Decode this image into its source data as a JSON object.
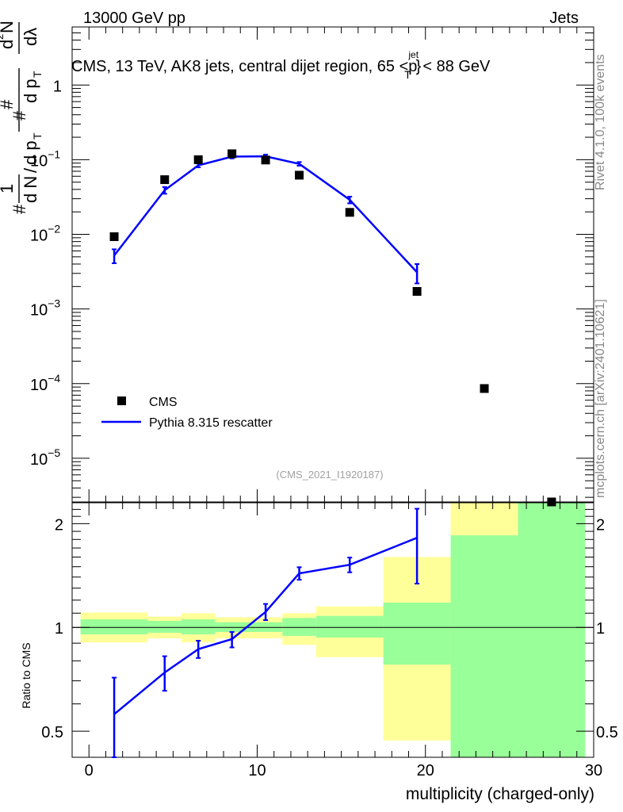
{
  "header": {
    "left": "13000 GeV pp",
    "right": "Jets",
    "title_prefix": "CMS, 13 TeV, AK8 jets, central dijet region, 65 <p",
    "title_sub": "T",
    "title_sup": "jet",
    "title_suffix": "< 88 GeV"
  },
  "side_labels": {
    "rivet": "Rivet 4.1.0,  100k events",
    "mcplots": "mcplots.cern.ch [arXiv:2401.10621]"
  },
  "watermark": "(CMS_2021_I1920187)",
  "legend": {
    "data_label": "CMS",
    "mc_label": "Pythia 8.315 rescatter"
  },
  "y_axis_label": {
    "hash": "#",
    "one": "1",
    "dn": "d N",
    "slash": "/",
    "dpt": "d p",
    "t": "T",
    "d2n": "d",
    "two": "2",
    "n": "N",
    "dpt2": "d p",
    "dlambda": "dλ"
  },
  "ratio_ylabel": "Ratio to CMS",
  "colors": {
    "mc": "#0000ff",
    "band_inner": "#99ff99",
    "band_outer": "#ffff99",
    "data": "#000000"
  },
  "chart_data": {
    "type": "scatter",
    "xlabel": "multiplicity (charged-only)",
    "xlim": [
      -1,
      30
    ],
    "x_ticks": [
      "0",
      "10",
      "20",
      "30"
    ],
    "main": {
      "yscale": "log",
      "ylim": [
        2.6e-06,
        6.0
      ],
      "y_ticks": [
        {
          "value": 1,
          "label": "1",
          "exp": ""
        },
        {
          "value": 0.1,
          "label": "10",
          "exp": "−1"
        },
        {
          "value": 0.01,
          "label": "10",
          "exp": "−2"
        },
        {
          "value": 0.001,
          "label": "10",
          "exp": "−3"
        },
        {
          "value": 0.0001,
          "label": "10",
          "exp": "−4"
        },
        {
          "value": 1e-05,
          "label": "10",
          "exp": "−5"
        }
      ],
      "series": [
        {
          "name": "CMS",
          "style": "markers",
          "x": [
            1.5,
            4.5,
            6.5,
            8.5,
            10.5,
            12.5,
            15.5,
            19.5,
            23.5,
            27.5
          ],
          "y": [
            0.0093,
            0.054,
            0.1,
            0.12,
            0.099,
            0.062,
            0.0197,
            0.00172,
            8.6e-05,
            2.55e-06
          ]
        },
        {
          "name": "Pythia 8.315 rescatter",
          "style": "line",
          "x": [
            1.5,
            4.5,
            6.5,
            8.5,
            10.5,
            12.5,
            15.5,
            19.5
          ],
          "y": [
            0.0052,
            0.039,
            0.084,
            0.11,
            0.111,
            0.088,
            0.029,
            0.0031
          ],
          "yerr": [
            0.0011,
            0.004,
            0.005,
            0.006,
            0.006,
            0.005,
            0.003,
            0.0009
          ]
        }
      ]
    },
    "ratio": {
      "ylabel": "Ratio to CMS",
      "yscale": "log",
      "ylim": [
        0.42,
        2.3
      ],
      "y_ticks": [
        "0.5",
        "1",
        "2"
      ],
      "y_tick_values": [
        0.5,
        1,
        2
      ],
      "reference": 1.0,
      "bands": [
        {
          "x": [
            -0.5,
            3.5
          ],
          "inner": [
            0.955,
            1.055
          ],
          "outer": [
            0.905,
            1.105
          ]
        },
        {
          "x": [
            3.5,
            5.5
          ],
          "inner": [
            0.965,
            1.045
          ],
          "outer": [
            0.93,
            1.075
          ]
        },
        {
          "x": [
            5.5,
            7.5
          ],
          "inner": [
            0.955,
            1.055
          ],
          "outer": [
            0.905,
            1.1
          ]
        },
        {
          "x": [
            7.5,
            11.5
          ],
          "inner": [
            0.97,
            1.035
          ],
          "outer": [
            0.93,
            1.07
          ]
        },
        {
          "x": [
            11.5,
            13.5
          ],
          "inner": [
            0.945,
            1.065
          ],
          "outer": [
            0.89,
            1.1
          ]
        },
        {
          "x": [
            13.5,
            17.5
          ],
          "inner": [
            0.935,
            1.08
          ],
          "outer": [
            0.82,
            1.15
          ]
        },
        {
          "x": [
            17.5,
            21.5
          ],
          "inner": [
            0.78,
            1.18
          ],
          "outer": [
            0.47,
            1.6
          ]
        },
        {
          "x": [
            21.5,
            25.5
          ],
          "inner": [
            0.42,
            1.85
          ],
          "outer": [
            0.42,
            2.3
          ]
        },
        {
          "x": [
            25.5,
            29.5
          ],
          "inner": [
            0.42,
            2.3
          ],
          "outer": [
            0.42,
            2.3
          ]
        }
      ],
      "series": {
        "name": "Pythia 8.315 rescatter / CMS",
        "x": [
          1.5,
          4.5,
          6.5,
          8.5,
          10.5,
          12.5,
          15.5,
          19.5
        ],
        "y": [
          0.56,
          0.74,
          0.865,
          0.925,
          1.11,
          1.435,
          1.52,
          1.82
        ],
        "yerr_low": [
          0.175,
          0.085,
          0.05,
          0.05,
          0.06,
          0.06,
          0.075,
          0.48
        ],
        "yerr_high": [
          0.155,
          0.085,
          0.05,
          0.045,
          0.06,
          0.06,
          0.075,
          0.39
        ]
      }
    }
  }
}
